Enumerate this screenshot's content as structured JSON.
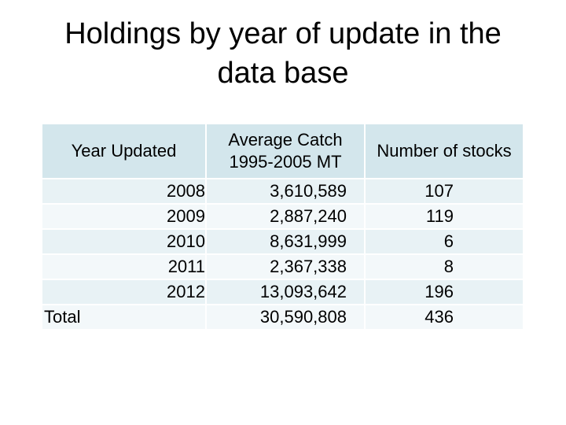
{
  "header": {
    "title": "Holdings by year of update in the data base"
  },
  "table": {
    "headers": [
      "Year Updated",
      "Average Catch\n1995-2005 MT",
      "Number of stocks"
    ],
    "rows": [
      [
        "2008",
        "3,610,589",
        "107"
      ],
      [
        "2009",
        "2,887,240",
        "119"
      ],
      [
        "2010",
        "8,631,999",
        "6"
      ],
      [
        "2011",
        "2,367,338",
        "8"
      ],
      [
        "2012",
        "13,093,642",
        "196"
      ],
      [
        "Total",
        "30,590,808",
        "436"
      ]
    ]
  }
}
